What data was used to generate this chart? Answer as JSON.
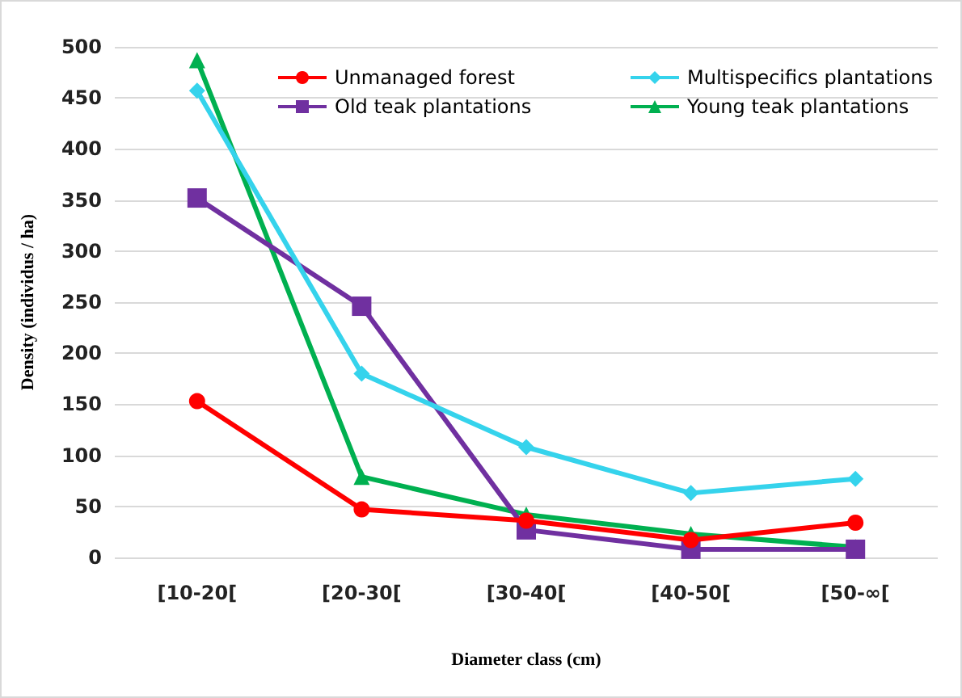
{
  "chart_data": {
    "type": "line",
    "xlabel": "Diameter class (cm)",
    "ylabel": "Density (individus / ha)",
    "categories": [
      "[10-20[",
      "[20-30[",
      "[30-40[",
      "[40-50[",
      "[50-∞["
    ],
    "series": [
      {
        "name": "Unmanaged forest",
        "color": "#ff0000",
        "marker": "circle",
        "values": [
          153,
          47,
          36,
          17,
          34
        ]
      },
      {
        "name": "Multispecifics plantations",
        "color": "#35d3ec",
        "marker": "diamond",
        "values": [
          457,
          180,
          108,
          63,
          77
        ]
      },
      {
        "name": "Old teak plantations",
        "color": "#7030a0",
        "marker": "square",
        "values": [
          352,
          246,
          27,
          8,
          8
        ]
      },
      {
        "name": "Young teak plantations",
        "color": "#00b050",
        "marker": "triangle",
        "values": [
          487,
          79,
          42,
          23,
          10
        ]
      }
    ],
    "ylim": [
      0,
      500
    ],
    "yticks": [
      0,
      50,
      100,
      150,
      200,
      250,
      300,
      350,
      400,
      450,
      500
    ],
    "grid": "y",
    "legend": "top right"
  }
}
